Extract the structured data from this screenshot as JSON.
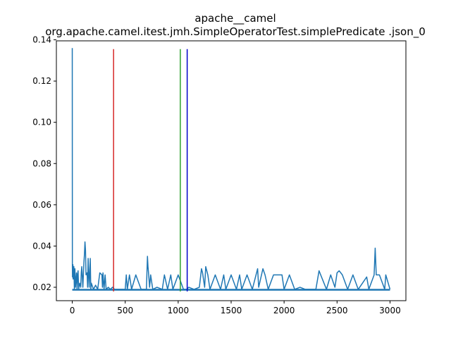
{
  "chart_data": {
    "type": "line",
    "title_line1": "apache__camel",
    "title_line2": "org.apache.camel.itest.jmh.SimpleOperatorTest.simplePredicate .json_0",
    "xlabel": "",
    "ylabel": "",
    "xlim": [
      -150,
      3150
    ],
    "ylim": [
      0.0135,
      0.1395
    ],
    "x_ticks": [
      0,
      500,
      1000,
      1500,
      2000,
      2500,
      3000
    ],
    "y_ticks": [
      0.02,
      0.04,
      0.06,
      0.08,
      0.1,
      0.12,
      0.14
    ],
    "y_tick_labels": [
      "0.02",
      "0.04",
      "0.06",
      "0.08",
      "0.10",
      "0.12",
      "0.14"
    ],
    "grid": false,
    "series_color": "#1f77b4",
    "baseline": 0.0188,
    "series": [
      {
        "x": [
          0,
          1,
          2,
          6,
          8,
          10,
          15,
          20,
          22,
          25,
          30,
          40,
          45,
          50,
          55,
          60,
          70,
          80,
          85,
          90,
          100,
          110,
          115,
          120,
          125,
          130,
          140,
          145,
          150,
          160,
          165,
          170,
          175,
          180,
          200,
          220,
          240,
          260,
          280,
          285,
          290,
          300,
          310,
          320,
          340,
          360,
          380,
          400,
          450,
          500,
          510,
          520,
          540,
          560,
          600,
          650,
          700,
          710,
          715,
          720,
          730,
          740,
          760,
          800,
          850,
          870,
          900,
          930,
          950,
          1000,
          1050,
          1080,
          1100,
          1150,
          1200,
          1220,
          1230,
          1250,
          1260,
          1280,
          1300,
          1350,
          1400,
          1430,
          1450,
          1500,
          1550,
          1580,
          1600,
          1650,
          1700,
          1750,
          1760,
          1800,
          1820,
          1850,
          1900,
          1980,
          2000,
          2050,
          2100,
          2150,
          2200,
          2300,
          2330,
          2400,
          2440,
          2480,
          2500,
          2520,
          2550,
          2600,
          2650,
          2700,
          2780,
          2800,
          2850,
          2860,
          2870,
          2900,
          2950,
          2960,
          3000
        ],
        "y": [
          0.136,
          0.03,
          0.025,
          0.031,
          0.024,
          0.028,
          0.03,
          0.019,
          0.026,
          0.029,
          0.02,
          0.027,
          0.019,
          0.026,
          0.028,
          0.019,
          0.022,
          0.02,
          0.027,
          0.03,
          0.02,
          0.032,
          0.036,
          0.042,
          0.038,
          0.026,
          0.027,
          0.02,
          0.034,
          0.02,
          0.027,
          0.034,
          0.019,
          0.022,
          0.019,
          0.021,
          0.019,
          0.027,
          0.026,
          0.02,
          0.027,
          0.019,
          0.026,
          0.019,
          0.02,
          0.019,
          0.02,
          0.019,
          0.019,
          0.019,
          0.026,
          0.019,
          0.026,
          0.019,
          0.026,
          0.019,
          0.019,
          0.035,
          0.03,
          0.027,
          0.02,
          0.026,
          0.019,
          0.02,
          0.019,
          0.026,
          0.019,
          0.026,
          0.019,
          0.026,
          0.019,
          0.019,
          0.02,
          0.019,
          0.02,
          0.029,
          0.027,
          0.02,
          0.03,
          0.026,
          0.019,
          0.026,
          0.019,
          0.026,
          0.019,
          0.026,
          0.019,
          0.026,
          0.019,
          0.026,
          0.019,
          0.029,
          0.02,
          0.029,
          0.026,
          0.019,
          0.026,
          0.026,
          0.019,
          0.026,
          0.019,
          0.02,
          0.019,
          0.019,
          0.028,
          0.019,
          0.026,
          0.02,
          0.027,
          0.028,
          0.026,
          0.019,
          0.026,
          0.019,
          0.025,
          0.019,
          0.026,
          0.039,
          0.026,
          0.026,
          0.019,
          0.026,
          0.019
        ]
      }
    ],
    "vertical_lines": [
      {
        "x": 390,
        "color": "#d62728"
      },
      {
        "x": 1020,
        "color": "#2ca02c"
      },
      {
        "x": 1085,
        "color": "#0000cc"
      }
    ],
    "vline_ymax": 0.1355
  }
}
